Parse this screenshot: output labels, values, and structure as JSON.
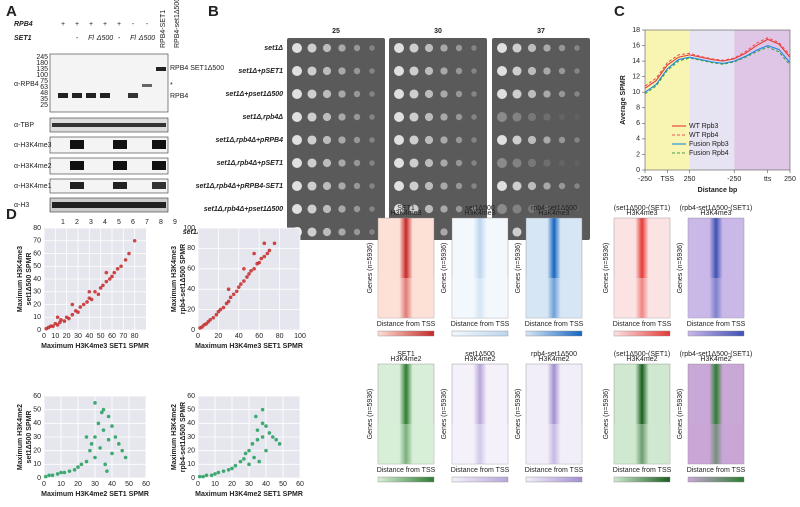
{
  "panel_labels": [
    "A",
    "B",
    "C",
    "D",
    "E"
  ],
  "panel_a": {
    "rpb4_label": "RPB4",
    "rpb4_marks": [
      "+",
      "+",
      "+",
      "+",
      "+",
      "-",
      "-"
    ],
    "set1_label": "SET1",
    "set1_marks": [
      "-",
      "Fl",
      "Δ500",
      "-",
      "Fl",
      "Δ500"
    ],
    "column_headers": [
      "RPB4-SET1",
      "RPB4-set1Δ500"
    ],
    "mw": [
      245,
      180,
      135,
      100,
      75,
      63,
      48,
      35,
      25
    ],
    "side_labels": [
      "RPB4 SET1Δ500",
      "*",
      "RPB4"
    ],
    "antibodies": [
      "α-RPB4",
      "α-TBP",
      "α-H3K4me3",
      "α-H3K4me2",
      "α-H3K4me1",
      "α-H3"
    ],
    "lanes": [
      1,
      2,
      3,
      4,
      5,
      6,
      7,
      8,
      9
    ]
  },
  "panel_b": {
    "temperatures": [
      25,
      30,
      37
    ],
    "strains": [
      "set1Δ",
      "set1Δ+pSET1",
      "set1Δ+pset1Δ500",
      "set1Δ,rpb4Δ",
      "set1Δ,rpb4Δ+pRPB4",
      "set1Δ,rpb4Δ+pSET1",
      "set1Δ,rpb4Δ+pRPB4-SET1",
      "set1Δ,rpb4Δ+pset1Δ500",
      "set1Δ,rpb4Δ+pRPB4-set1Δ500"
    ]
  },
  "chart_data": [
    {
      "type": "line",
      "ylabel": "Average SPMR",
      "xlabel": "Distance bp",
      "categories": [
        "-250",
        null,
        "TSS",
        null,
        "250",
        null,
        null,
        null,
        "-250",
        null,
        null,
        "tts",
        null,
        "250"
      ],
      "series": [
        {
          "name": "WT Rpb3",
          "color": "#e53935",
          "dash": false,
          "values": [
            10.5,
            11.5,
            13.5,
            14.5,
            14.8,
            14.5,
            14.2,
            14,
            14.3,
            15,
            16,
            16.8,
            16.2,
            14.5
          ]
        },
        {
          "name": "WT Rpb4",
          "color": "#ef5350",
          "dash": true,
          "values": [
            10.8,
            11.8,
            13.8,
            14.8,
            15,
            14.6,
            14.3,
            14.1,
            14.4,
            15.2,
            16.3,
            17,
            16.4,
            14.8
          ]
        },
        {
          "name": "Fusion Rpb3",
          "color": "#1e88e5",
          "dash": false,
          "values": [
            10,
            11,
            13,
            14.2,
            14.5,
            14.2,
            13.9,
            13.7,
            14,
            14.6,
            15.4,
            16,
            15.5,
            13.8
          ]
        },
        {
          "name": "Fusion Rpb4",
          "color": "#43a047",
          "dash": true,
          "values": [
            9.8,
            10.8,
            12.8,
            14,
            14.4,
            14.1,
            13.8,
            13.6,
            13.9,
            14.5,
            15.2,
            15.8,
            15.2,
            13.5
          ]
        }
      ],
      "ylim": [
        0,
        18
      ],
      "yticks": [
        0,
        2,
        4,
        6,
        8,
        10,
        12,
        14,
        16,
        18
      ]
    },
    {
      "type": "scatter",
      "color": "#c62828",
      "grid": true,
      "xlabel": "Maximum H3K4me3 SET1 SPMR",
      "ylabel": [
        "Maximum H3K4me3",
        "set1Δ500 SPMR"
      ],
      "x": [
        2,
        4,
        6,
        8,
        10,
        12,
        14,
        15,
        18,
        20,
        22,
        25,
        28,
        30,
        32,
        35,
        38,
        40,
        42,
        45,
        48,
        50,
        52,
        55,
        58,
        60,
        62,
        65,
        68,
        72,
        75,
        80,
        12,
        25,
        40,
        55
      ],
      "values": [
        1,
        2,
        3,
        3,
        5,
        4,
        6,
        8,
        7,
        10,
        9,
        12,
        15,
        14,
        18,
        20,
        22,
        25,
        24,
        30,
        28,
        33,
        35,
        38,
        40,
        42,
        45,
        48,
        50,
        55,
        60,
        70,
        10,
        20,
        30,
        45
      ],
      "xlim": [
        0,
        90
      ],
      "xticks": [
        0,
        10,
        20,
        30,
        40,
        50,
        60,
        70,
        80
      ],
      "ylim": [
        0,
        80
      ],
      "yticks": [
        0,
        10,
        20,
        30,
        40,
        50,
        60,
        70,
        80
      ]
    },
    {
      "type": "scatter",
      "color": "#c62828",
      "grid": true,
      "xlabel": "Maximum H3K4me3 SET1 SPMR",
      "ylabel": [
        "Maximum H3K4me3",
        "rpb4-set1Δ500 SPMR"
      ],
      "x": [
        2,
        4,
        6,
        8,
        10,
        12,
        15,
        18,
        20,
        22,
        25,
        28,
        30,
        32,
        35,
        38,
        40,
        42,
        45,
        48,
        50,
        52,
        55,
        58,
        60,
        62,
        65,
        68,
        70,
        75,
        30,
        45,
        55,
        65
      ],
      "values": [
        2,
        3,
        5,
        6,
        8,
        10,
        12,
        15,
        18,
        20,
        22,
        26,
        28,
        32,
        35,
        38,
        42,
        45,
        48,
        52,
        55,
        58,
        60,
        65,
        66,
        70,
        72,
        75,
        78,
        85,
        40,
        60,
        75,
        85
      ],
      "xlim": [
        0,
        100
      ],
      "xticks": [
        0,
        20,
        40,
        60,
        80,
        100
      ],
      "ylim": [
        0,
        100
      ],
      "yticks": [
        0,
        20,
        40,
        60,
        80,
        100
      ]
    },
    {
      "type": "scatter",
      "color": "#1e9e5a",
      "grid": true,
      "xlabel": "Maximum H3K4me2 SET1 SPMR",
      "ylabel": [
        "Maximum H3K4me2",
        "set1Δ500 SPMR"
      ],
      "x": [
        1,
        3,
        5,
        8,
        10,
        12,
        15,
        18,
        20,
        22,
        25,
        27,
        28,
        30,
        30,
        32,
        33,
        35,
        35,
        36,
        38,
        38,
        40,
        40,
        42,
        44,
        46,
        48,
        30,
        34,
        25,
        37
      ],
      "values": [
        1,
        2,
        2,
        3,
        4,
        4,
        5,
        6,
        8,
        10,
        12,
        20,
        25,
        30,
        15,
        40,
        22,
        35,
        50,
        10,
        28,
        45,
        18,
        38,
        30,
        25,
        20,
        15,
        55,
        48,
        30,
        5
      ],
      "xlim": [
        0,
        60
      ],
      "xticks": [
        0,
        10,
        20,
        30,
        40,
        50,
        60
      ],
      "ylim": [
        0,
        60
      ],
      "yticks": [
        0,
        10,
        20,
        30,
        40,
        50,
        60
      ]
    },
    {
      "type": "scatter",
      "color": "#1e9e5a",
      "grid": true,
      "xlabel": "Maximum H3K4me2 SET1 SPMR",
      "ylabel": [
        "Maximum H3K4me2",
        "rpb4-set1Δ500 SPMR"
      ],
      "x": [
        1,
        3,
        5,
        8,
        10,
        12,
        15,
        18,
        20,
        22,
        25,
        27,
        28,
        30,
        30,
        32,
        33,
        35,
        35,
        36,
        38,
        38,
        40,
        40,
        42,
        44,
        46,
        48,
        34,
        38
      ],
      "values": [
        1,
        1,
        2,
        2,
        3,
        4,
        5,
        6,
        7,
        9,
        12,
        14,
        18,
        20,
        10,
        25,
        15,
        28,
        35,
        12,
        30,
        40,
        20,
        38,
        33,
        30,
        28,
        25,
        45,
        50
      ],
      "xlim": [
        0,
        60
      ],
      "xticks": [
        0,
        10,
        20,
        30,
        40,
        50,
        60
      ],
      "ylim": [
        0,
        60
      ],
      "yticks": [
        0,
        10,
        20,
        30,
        40,
        50,
        60
      ]
    }
  ],
  "panel_e": {
    "x_label": "Distance from TSS",
    "y_label": "Genes (n=5936)",
    "heatmaps": [
      {
        "title": [
          "SET1",
          "H3K4me3"
        ],
        "colors": [
          "#fde0d6",
          "#c62828"
        ]
      },
      {
        "title": [
          "set1Δ500",
          "H3K4me3"
        ],
        "colors": [
          "#f3f8fd",
          "#bcd6ee"
        ]
      },
      {
        "title": [
          "rpb4-set1Δ500",
          "H3K4me3"
        ],
        "colors": [
          "#d6e6f5",
          "#1565c0"
        ]
      },
      {
        "title": [
          "(set1Δ500-(SET1)",
          "H3K4me3"
        ],
        "colors": [
          "#fbe3e3",
          "#e53935"
        ]
      },
      {
        "title": [
          "(rpb4-set1Δ500-(SET1)",
          "H3K4me3"
        ],
        "colors": [
          "#c9b8e8",
          "#3f51b5"
        ]
      },
      {
        "title": [
          "SET1",
          "H3K4me2"
        ],
        "colors": [
          "#d8eed8",
          "#2e7d32"
        ]
      },
      {
        "title": [
          "set1Δ500",
          "H3K4me2"
        ],
        "colors": [
          "#f4f1fa",
          "#b8a6d9"
        ]
      },
      {
        "title": [
          "rpb4-set1Δ500",
          "H3K4me2"
        ],
        "colors": [
          "#f1eef8",
          "#a48fd0"
        ]
      },
      {
        "title": [
          "(set1Δ500-(SET1)",
          "H3K4me2"
        ],
        "colors": [
          "#cfe8cf",
          "#1b5e20"
        ]
      },
      {
        "title": [
          "(rpb4-set1Δ500-(SET1)",
          "H3K4me2"
        ],
        "colors": [
          "#c9a7d6",
          "#2e7d32"
        ]
      }
    ]
  }
}
